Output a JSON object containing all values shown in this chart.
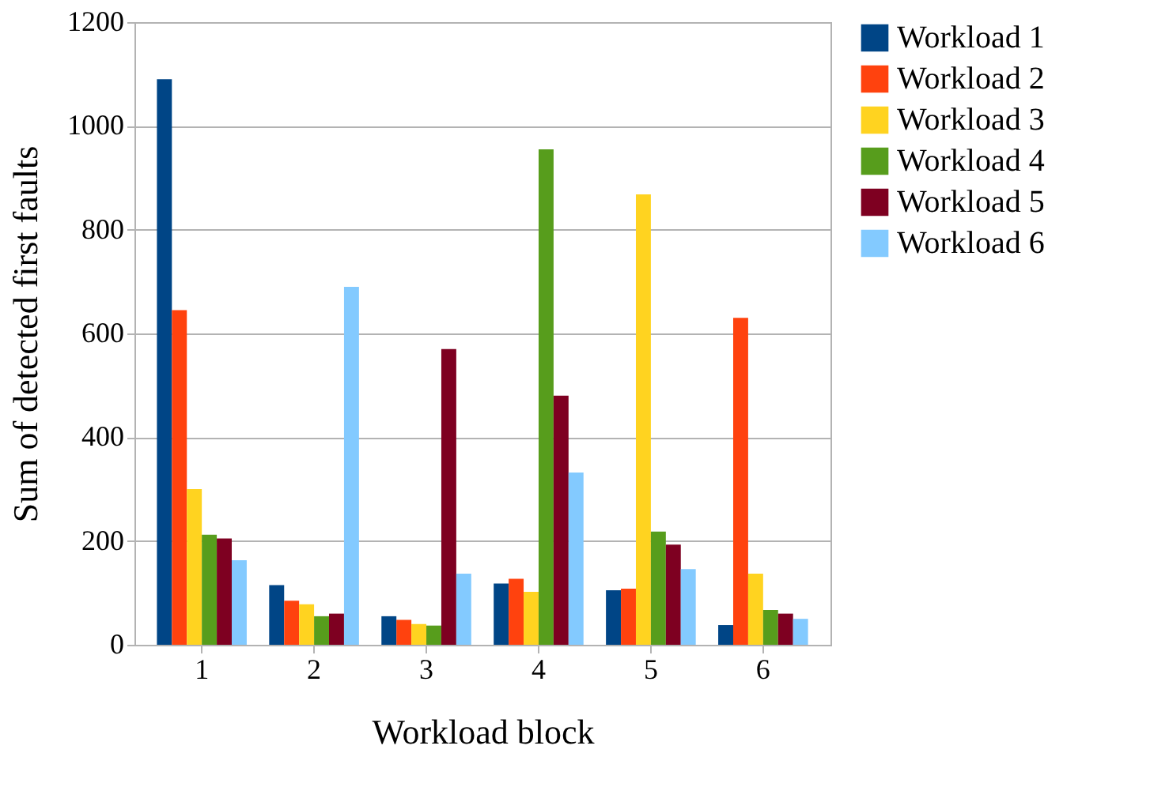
{
  "chart_data": {
    "type": "bar",
    "xlabel": "Workload block",
    "ylabel": "Sum of detected first faults",
    "categories": [
      "1",
      "2",
      "3",
      "4",
      "5",
      "6"
    ],
    "series": [
      {
        "name": "Workload 1",
        "color": "#004586",
        "values": [
          1090,
          115,
          55,
          118,
          105,
          38
        ]
      },
      {
        "name": "Workload 2",
        "color": "#ff420e",
        "values": [
          645,
          85,
          48,
          127,
          108,
          630
        ]
      },
      {
        "name": "Workload 3",
        "color": "#ffd320",
        "values": [
          300,
          78,
          40,
          102,
          868,
          137
        ]
      },
      {
        "name": "Workload 4",
        "color": "#579d1c",
        "values": [
          212,
          55,
          37,
          955,
          218,
          67
        ]
      },
      {
        "name": "Workload 5",
        "color": "#7e0021",
        "values": [
          205,
          60,
          570,
          480,
          193,
          60
        ]
      },
      {
        "name": "Workload 6",
        "color": "#83caff",
        "values": [
          163,
          690,
          137,
          332,
          146,
          50
        ]
      }
    ],
    "ylim": [
      0,
      1200
    ],
    "yticks": [
      0,
      200,
      400,
      600,
      800,
      1000,
      1200
    ],
    "grid": "y",
    "legend": "right"
  }
}
